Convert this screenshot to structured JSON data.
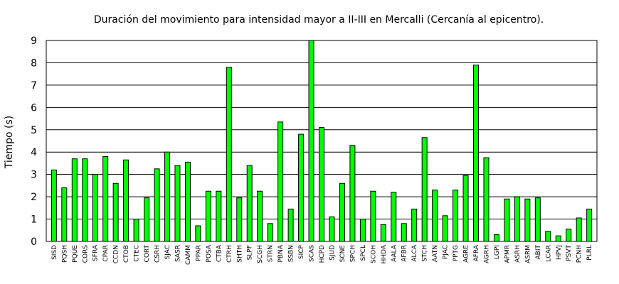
{
  "chart_data": {
    "type": "bar",
    "title": "Duración del movimiento para intensidad mayor a II-III en Mercalli (Cercanía al epicentro).",
    "xlabel": "",
    "ylabel": "Tiempo (s)",
    "ylim": [
      0,
      9
    ],
    "yticks": [
      0,
      1,
      2,
      3,
      4,
      5,
      6,
      7,
      8,
      9
    ],
    "grid": true,
    "legend": "none",
    "bar_color": "#00ff00",
    "categories": [
      "SISD",
      "PQSH",
      "PQUE",
      "CORS",
      "SFRA",
      "CPAR",
      "CCDN",
      "CTOB",
      "CTEC",
      "CORT",
      "CSRH",
      "SJAC",
      "SASR",
      "CAMM",
      "PPAR",
      "POSA",
      "CTBA",
      "CTRH",
      "SHTH",
      "SLPF",
      "SCGH",
      "STRN",
      "PBNA",
      "SSBN",
      "SICP",
      "SCAS",
      "HCPD",
      "SJUD",
      "SCNE",
      "SPCH",
      "SPCL",
      "SCOH",
      "HHDA",
      "AALA",
      "AFBR",
      "ALCA",
      "STCH",
      "AATN",
      "PJAC",
      "PPTG",
      "AGRE",
      "AFRA",
      "AGRH",
      "LGPI",
      "APMR",
      "ASRH",
      "ASRM",
      "ABIT",
      "LCAR",
      "HPVJ",
      "PSVT",
      "PCNH",
      "PLRL"
    ],
    "values": [
      3.2,
      2.4,
      3.7,
      3.7,
      3.0,
      3.8,
      2.6,
      3.65,
      1.0,
      1.95,
      3.25,
      4.0,
      3.4,
      3.55,
      0.7,
      2.25,
      2.25,
      7.8,
      1.95,
      3.4,
      2.25,
      0.8,
      5.35,
      1.45,
      4.8,
      9.0,
      5.1,
      1.1,
      2.6,
      4.3,
      1.0,
      2.25,
      0.75,
      2.2,
      0.8,
      1.45,
      4.65,
      2.3,
      1.15,
      2.3,
      2.95,
      7.9,
      3.75,
      0.3,
      1.9,
      2.0,
      1.9,
      1.95,
      0.45,
      0.25,
      0.55,
      1.05,
      1.45
    ]
  }
}
